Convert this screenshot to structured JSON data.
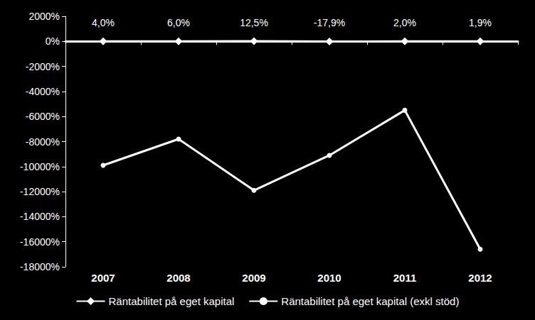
{
  "chart_data": {
    "type": "line",
    "categories": [
      "2007",
      "2008",
      "2009",
      "2010",
      "2011",
      "2012"
    ],
    "ylim": [
      -18000,
      2000
    ],
    "yticks": [
      {
        "value": -18000,
        "label": "-18000%"
      },
      {
        "value": -16000,
        "label": "-16000%"
      },
      {
        "value": -14000,
        "label": "-14000%"
      },
      {
        "value": -12000,
        "label": "-12000%"
      },
      {
        "value": -10000,
        "label": "-10000%"
      },
      {
        "value": -8000,
        "label": "-8000%"
      },
      {
        "value": -6000,
        "label": "-6000%"
      },
      {
        "value": -4000,
        "label": "-4000%"
      },
      {
        "value": -2000,
        "label": "-2000%"
      },
      {
        "value": 0,
        "label": "0%"
      },
      {
        "value": 2000,
        "label": "2000%"
      }
    ],
    "grid": false,
    "legend": "bottom",
    "series": [
      {
        "name": "Räntabilitet på eget kapital",
        "color": "#ffffff",
        "marker": "diamond",
        "data_labels": true,
        "values": [
          4.0,
          6.0,
          12.5,
          -17.9,
          2.0,
          1.9
        ],
        "value_labels": [
          "4,0%",
          "6,0%",
          "12,5%",
          "-17,9%",
          "2,0%",
          "1,9%"
        ]
      },
      {
        "name": "Räntabilitet på eget kapital (exkl stöd)",
        "color": "#ffffff",
        "marker": "circle",
        "values": [
          -9900,
          -7800,
          -11900,
          -9100,
          -5500,
          -16600
        ]
      }
    ]
  }
}
